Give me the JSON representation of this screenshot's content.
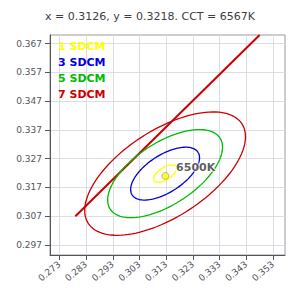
{
  "chart_data": {
    "type": "scatter",
    "title": "x = 0.3126, y = 0.3218. CCT = 6567K",
    "xlim": [
      0.2695,
      0.3575
    ],
    "ylim": [
      0.2935,
      0.37
    ],
    "xticks": [
      0.273,
      0.283,
      0.293,
      0.303,
      0.313,
      0.323,
      0.333,
      0.343,
      0.353
    ],
    "yticks": [
      0.297,
      0.307,
      0.317,
      0.327,
      0.337,
      0.347,
      0.357,
      0.367
    ],
    "grid": true,
    "line": {
      "x": [
        0.279,
        0.348
      ],
      "y": [
        0.307,
        0.37
      ],
      "color": "#cc0000"
    },
    "ellipses": {
      "center_x": 0.3126,
      "center_y": 0.3218,
      "angle": 30.0,
      "a_base": 0.0048,
      "b_base": 0.0022,
      "levels": [
        1,
        3,
        5,
        7
      ],
      "colors": [
        "#ffff00",
        "#0000dd",
        "#00bb00",
        "#cc0000"
      ],
      "labels": [
        "1 SDCM",
        "3 SDCM",
        "5 SDCM",
        "7 SDCM"
      ]
    },
    "point": {
      "x": 0.3127,
      "y": 0.321,
      "label": "6500K",
      "color": "#ffff00"
    }
  }
}
